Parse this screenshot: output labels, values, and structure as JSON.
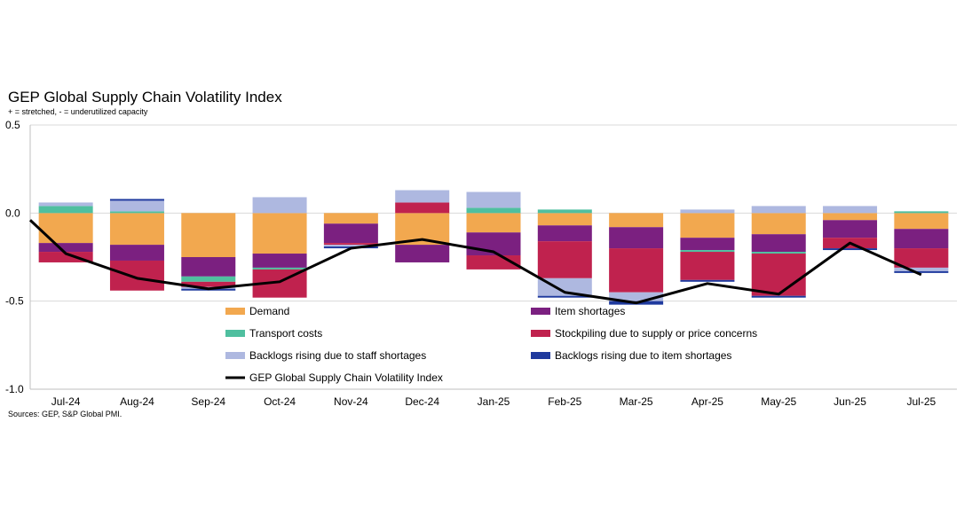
{
  "title": "GEP Global Supply Chain Volatility Index",
  "subtitle": "+ = stretched, - = underutilized capacity",
  "source": "Sources: GEP, S&P Global PMI.",
  "colors": {
    "demand": "#F2A84F",
    "item_shortages": "#7B2080",
    "transport_costs": "#4FBF9F",
    "stockpiling": "#C0224E",
    "backlogs_staff": "#AEB8E0",
    "backlogs_items": "#1F3A9E",
    "index_line": "#000000"
  },
  "chart_data": {
    "type": "bar",
    "stacked": true,
    "title": "GEP Global Supply Chain Volatility Index",
    "subtitle": "+ = stretched, - = underutilized capacity",
    "categories": [
      "Jul-24",
      "Aug-24",
      "Sep-24",
      "Oct-24",
      "Nov-24",
      "Dec-24",
      "Jan-25",
      "Feb-25",
      "Mar-25",
      "Apr-25",
      "May-25",
      "Jun-25",
      "Jul-25"
    ],
    "ylim": [
      -1.0,
      0.5
    ],
    "yticks": [
      {
        "value": 0.5,
        "label": "0.5"
      },
      {
        "value": 0.0,
        "label": "0.0"
      },
      {
        "value": -0.5,
        "label": "-0.5"
      },
      {
        "value": -1.0,
        "label": "-1.0"
      }
    ],
    "grid": true,
    "legend_position": "bottom-inside",
    "series": [
      {
        "key": "demand",
        "name": "Demand",
        "values": [
          -0.17,
          -0.18,
          -0.25,
          -0.23,
          -0.06,
          -0.18,
          -0.11,
          -0.07,
          -0.08,
          -0.14,
          -0.12,
          -0.04,
          -0.09
        ]
      },
      {
        "key": "item_shortages",
        "name": "Item shortages",
        "values": [
          -0.05,
          -0.09,
          -0.11,
          -0.08,
          -0.11,
          -0.1,
          -0.13,
          -0.09,
          -0.12,
          -0.07,
          -0.1,
          -0.1,
          -0.11
        ]
      },
      {
        "key": "transport_costs",
        "name": "Transport costs",
        "values": [
          0.04,
          0.01,
          -0.03,
          -0.01,
          0.0,
          0.0,
          0.03,
          0.02,
          0.0,
          -0.01,
          -0.01,
          0.0,
          0.01
        ]
      },
      {
        "key": "stockpiling",
        "name": "Stockpiling due to supply or price concerns",
        "values": [
          -0.06,
          -0.17,
          -0.03,
          -0.16,
          -0.01,
          0.06,
          -0.08,
          -0.21,
          -0.25,
          -0.16,
          -0.24,
          -0.06,
          -0.11
        ]
      },
      {
        "key": "backlogs_staff",
        "name": "Backlogs rising due to staff shortages",
        "values": [
          0.02,
          0.06,
          -0.01,
          0.09,
          -0.01,
          0.07,
          0.09,
          -0.1,
          -0.05,
          0.02,
          0.04,
          0.04,
          -0.02
        ]
      },
      {
        "key": "backlogs_items",
        "name": "Backlogs rising due to item shortages",
        "values": [
          0.0,
          0.01,
          -0.01,
          0.0,
          -0.01,
          0.0,
          0.0,
          -0.01,
          -0.02,
          -0.01,
          -0.01,
          -0.01,
          -0.01
        ]
      }
    ],
    "line": {
      "name": "GEP Global Supply Chain Volatility Index",
      "start_value": -0.04,
      "values": [
        -0.23,
        -0.37,
        -0.43,
        -0.39,
        -0.2,
        -0.15,
        -0.22,
        -0.45,
        -0.51,
        -0.4,
        -0.46,
        -0.17,
        -0.35
      ]
    },
    "legend": [
      {
        "key": "demand",
        "label": "Demand",
        "kind": "box"
      },
      {
        "key": "item_shortages",
        "label": "Item shortages",
        "kind": "box"
      },
      {
        "key": "transport_costs",
        "label": "Transport costs",
        "kind": "box"
      },
      {
        "key": "stockpiling",
        "label": "Stockpiling due to supply or price concerns",
        "kind": "box"
      },
      {
        "key": "backlogs_staff",
        "label": "Backlogs rising due to staff shortages",
        "kind": "box"
      },
      {
        "key": "backlogs_items",
        "label": "Backlogs rising due to item shortages",
        "kind": "box"
      },
      {
        "key": "index_line",
        "label": "GEP Global Supply Chain Volatility Index",
        "kind": "line"
      }
    ]
  }
}
